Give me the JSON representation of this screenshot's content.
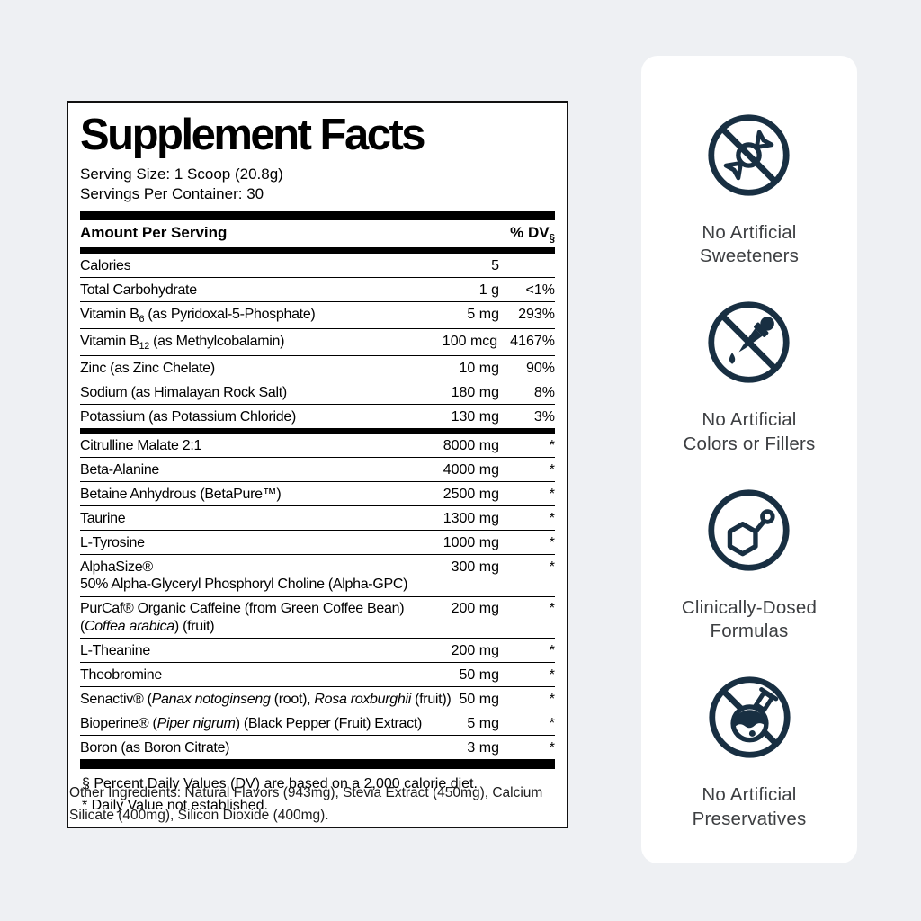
{
  "page": {
    "background": "#eef0f3",
    "accent_navy": "#182f42"
  },
  "label": {
    "title": "Supplement Facts",
    "serving_size": "Serving Size: 1 Scoop (20.8g)",
    "servings_per_container": "Servings Per Container: 30",
    "column_headers": {
      "amount": "Amount Per Serving",
      "dv": "% DV",
      "dv_sub": "§"
    },
    "rows": [
      {
        "name": [
          {
            "t": "Calories"
          }
        ],
        "amount": "5",
        "dv": ""
      },
      {
        "name": [
          {
            "t": "Total Carbohydrate"
          }
        ],
        "amount": "1 g",
        "dv": "<1%"
      },
      {
        "name": [
          {
            "t": "Vitamin B"
          },
          {
            "t": "6",
            "s": "sub"
          },
          {
            "t": " (as Pyridoxal-5-Phosphate)"
          }
        ],
        "amount": "5 mg",
        "dv": "293%"
      },
      {
        "name": [
          {
            "t": "Vitamin B"
          },
          {
            "t": "12",
            "s": "sub"
          },
          {
            "t": " (as Methylcobalamin)"
          }
        ],
        "amount": "100 mcg",
        "dv": "4167%"
      },
      {
        "name": [
          {
            "t": "Zinc (as Zinc Chelate)"
          }
        ],
        "amount": "10 mg",
        "dv": "90%"
      },
      {
        "name": [
          {
            "t": "Sodium (as Himalayan Rock Salt)"
          }
        ],
        "amount": "180 mg",
        "dv": "8%"
      },
      {
        "name": [
          {
            "t": "Potassium (as Potassium Chloride)"
          }
        ],
        "amount": "130 mg",
        "dv": "3%",
        "divider_after": true
      },
      {
        "name": [
          {
            "t": "Citrulline Malate 2:1"
          }
        ],
        "amount": "8000 mg",
        "dv": "*"
      },
      {
        "name": [
          {
            "t": "Beta-Alanine"
          }
        ],
        "amount": "4000 mg",
        "dv": "*"
      },
      {
        "name": [
          {
            "t": "Betaine Anhydrous (BetaPure™)"
          }
        ],
        "amount": "2500 mg",
        "dv": "*"
      },
      {
        "name": [
          {
            "t": "Taurine"
          }
        ],
        "amount": "1300 mg",
        "dv": "*"
      },
      {
        "name": [
          {
            "t": "L-Tyrosine"
          }
        ],
        "amount": "1000 mg",
        "dv": "*"
      },
      {
        "name": [
          {
            "t": "AlphaSize®"
          }
        ],
        "line2": [
          {
            "t": "50% Alpha-Glyceryl Phosphoryl Choline (Alpha-GPC)"
          }
        ],
        "amount": "300 mg",
        "dv": "*"
      },
      {
        "name": [
          {
            "t": "PurCaf® Organic Caffeine (from Green Coffee Bean)"
          }
        ],
        "line2": [
          {
            "t": "("
          },
          {
            "t": "Coffea arabica",
            "s": "i"
          },
          {
            "t": ") (fruit)"
          }
        ],
        "amount": "200 mg",
        "dv": "*"
      },
      {
        "name": [
          {
            "t": "L-Theanine"
          }
        ],
        "amount": "200 mg",
        "dv": "*"
      },
      {
        "name": [
          {
            "t": "Theobromine"
          }
        ],
        "amount": "50 mg",
        "dv": "*"
      },
      {
        "name": [
          {
            "t": "Senactiv® ("
          },
          {
            "t": "Panax notoginseng",
            "s": "i"
          },
          {
            "t": " (root), "
          },
          {
            "t": "Rosa roxburghii",
            "s": "i"
          },
          {
            "t": " (fruit))"
          }
        ],
        "amount": "50 mg",
        "dv": "*"
      },
      {
        "name": [
          {
            "t": "Bioperine® ("
          },
          {
            "t": "Piper nigrum",
            "s": "i"
          },
          {
            "t": ") (Black Pepper (Fruit) Extract)"
          }
        ],
        "amount": "5 mg",
        "dv": "*"
      },
      {
        "name": [
          {
            "t": "Boron (as Boron Citrate)"
          }
        ],
        "amount": "3 mg",
        "dv": "*"
      }
    ],
    "footnotes": [
      "§ Percent Daily Values (DV) are based on a 2,000 calorie diet.",
      "* Daily Value not established."
    ],
    "other_ingredients": "Other Ingredients: Natural Flavors (943mg), Stevia Extract (450mg), Calcium Silicate (400mg), Silicon Dioxide (400mg)."
  },
  "badges": {
    "items": [
      {
        "icon": "no-artificial-sweeteners-icon",
        "line1": "No Artificial",
        "line2": "Sweeteners"
      },
      {
        "icon": "no-artificial-colors-icon",
        "line1": "No Artificial",
        "line2": "Colors or Fillers"
      },
      {
        "icon": "clinically-dosed-icon",
        "line1": "Clinically-Dosed",
        "line2": "Formulas"
      },
      {
        "icon": "no-artificial-preservatives-icon",
        "line1": "No Artificial",
        "line2": "Preservatives"
      }
    ]
  }
}
